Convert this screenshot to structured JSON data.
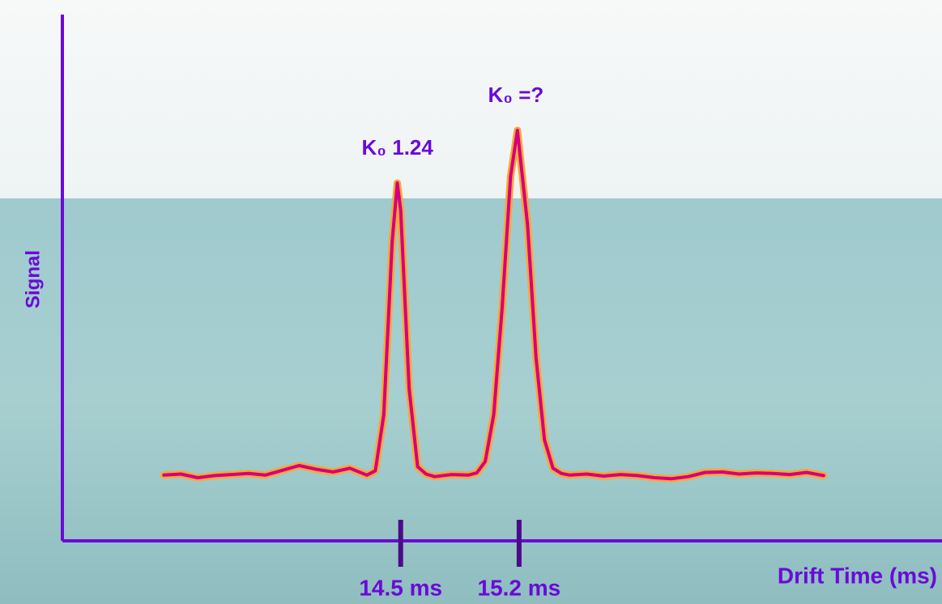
{
  "chart_data": {
    "type": "line",
    "x_label": "Drift Time (ms)",
    "y_label": "Signal",
    "annotations": [
      "K₀ 1.24",
      "K₀ =?"
    ],
    "xlim": [
      12.5,
      17.7
    ],
    "ylim": [
      0,
      1
    ],
    "xticks": [
      {
        "value": 14.5,
        "label": "14.5 ms"
      },
      {
        "value": 15.2,
        "label": "15.2 ms"
      }
    ],
    "axis_color": "#6a0ad8",
    "series": [
      {
        "color": "#d4007e",
        "halo_color": "#f6a834",
        "x": [
          13.1,
          13.2,
          13.3,
          13.4,
          13.5,
          13.6,
          13.7,
          13.8,
          13.9,
          14.0,
          14.1,
          14.2,
          14.3,
          14.35,
          14.4,
          14.45,
          14.48,
          14.5,
          14.55,
          14.6,
          14.65,
          14.7,
          14.8,
          14.9,
          14.95,
          15.0,
          15.05,
          15.1,
          15.15,
          15.19,
          15.25,
          15.3,
          15.35,
          15.4,
          15.45,
          15.5,
          15.6,
          15.7,
          15.8,
          15.9,
          16.0,
          16.1,
          16.2,
          16.3,
          16.4,
          16.5,
          16.6,
          16.7,
          16.8,
          16.9,
          17.0
        ],
        "values": [
          0.125,
          0.127,
          0.12,
          0.124,
          0.126,
          0.128,
          0.125,
          0.134,
          0.143,
          0.136,
          0.131,
          0.138,
          0.125,
          0.133,
          0.239,
          0.569,
          0.68,
          0.628,
          0.29,
          0.141,
          0.127,
          0.122,
          0.126,
          0.125,
          0.129,
          0.151,
          0.24,
          0.444,
          0.693,
          0.78,
          0.601,
          0.348,
          0.192,
          0.138,
          0.128,
          0.125,
          0.127,
          0.123,
          0.126,
          0.124,
          0.12,
          0.118,
          0.122,
          0.13,
          0.131,
          0.127,
          0.129,
          0.128,
          0.126,
          0.13,
          0.124
        ]
      }
    ]
  }
}
